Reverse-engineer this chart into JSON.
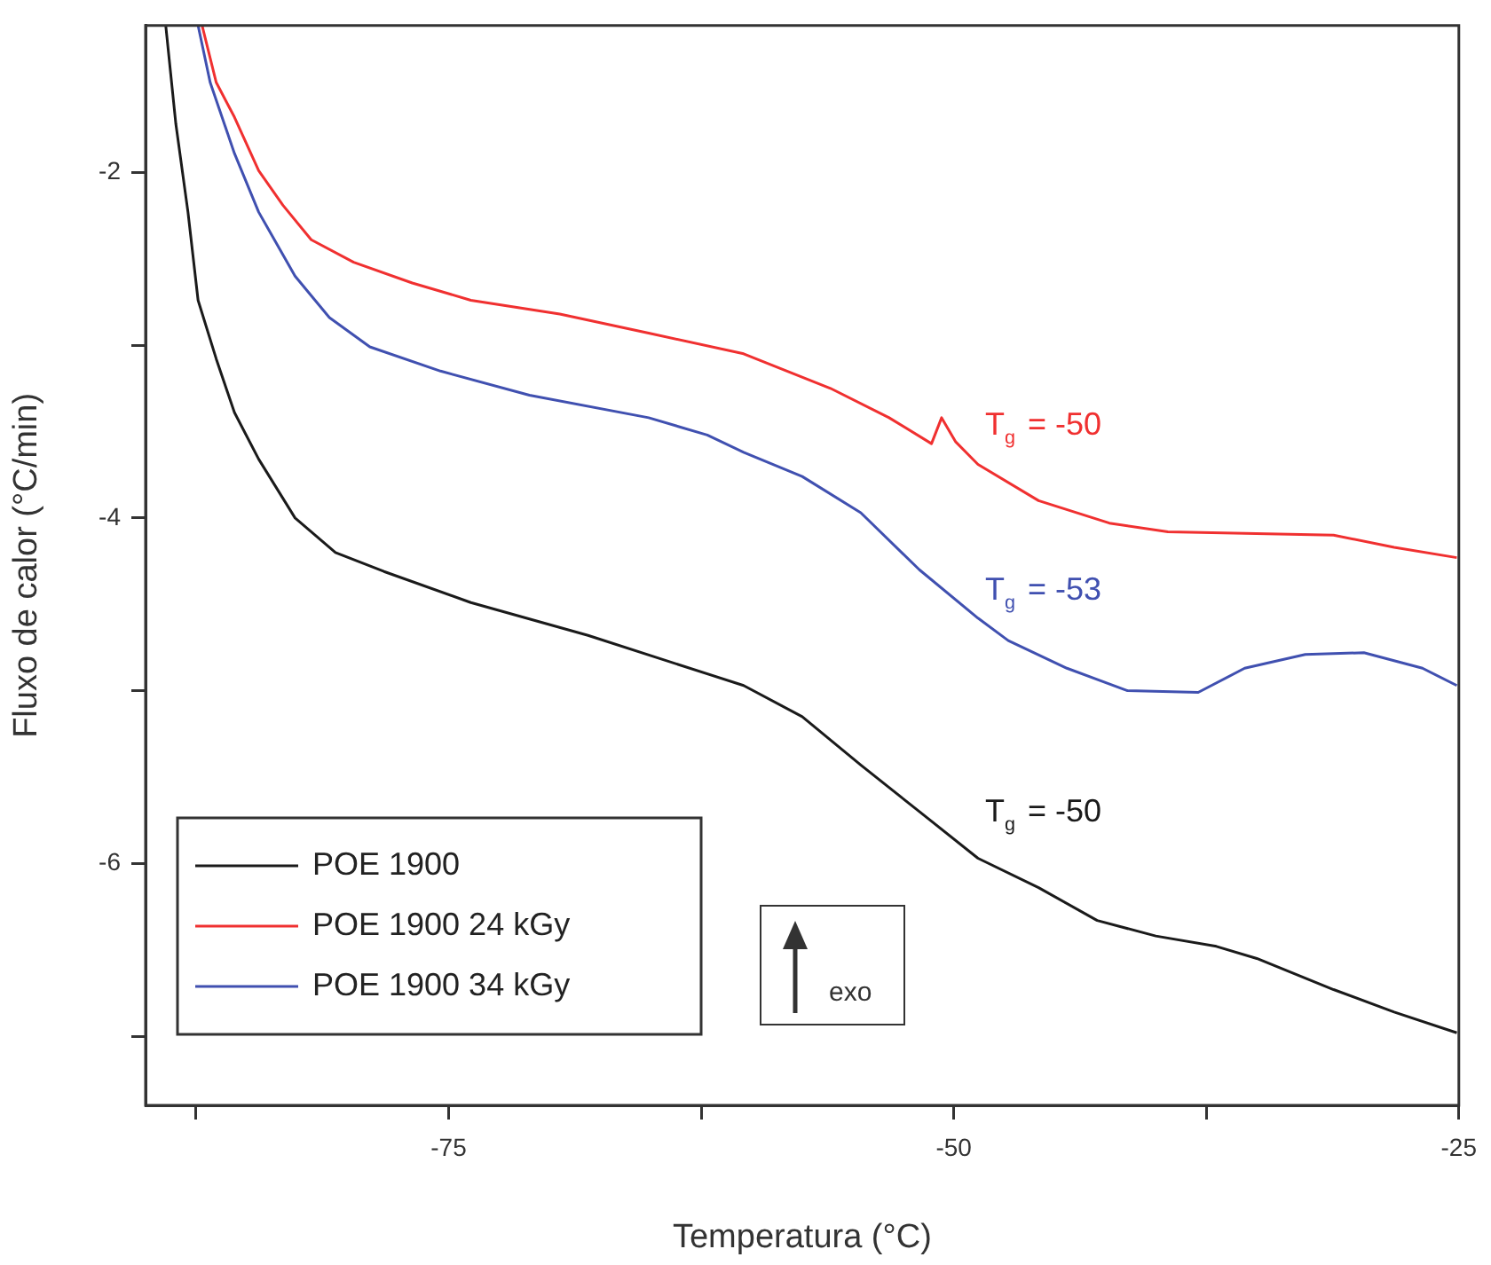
{
  "chart_data": {
    "type": "line",
    "xlabel": "Temperatura (°C)",
    "ylabel": "Fluxo de calor (°C/min)",
    "xlim": [
      -90,
      -25
    ],
    "xticks": [
      {
        "value": -87.5,
        "label": null
      },
      -75,
      {
        "value": -62.5,
        "label": null
      },
      -50,
      {
        "value": -37.5,
        "label": null
      },
      -25
    ],
    "ylim": [
      -7.4,
      -1.15
    ],
    "yticks": [
      {
        "value": -7,
        "label": null
      },
      -6,
      {
        "value": -5,
        "label": null
      },
      -4,
      {
        "value": -3,
        "label": null
      },
      -2
    ],
    "legend": "bottom left",
    "marker": "none",
    "line_style": "solid",
    "grid": false,
    "series": [
      {
        "name": "POE 1900",
        "color": "#1a1a1a",
        "x": [
          -89.0,
          -88.5,
          -87.9,
          -87.4,
          -86.5,
          -85.6,
          -84.4,
          -82.6,
          -80.6,
          -78.2,
          -73.9,
          -68.1,
          -60.4,
          -57.5,
          -54.6,
          -51.7,
          -48.8,
          -45.8,
          -42.9,
          -40.0,
          -37.0,
          -35.0,
          -31.2,
          -28.2,
          -25.1
        ],
        "values": [
          -1.15,
          -1.72,
          -2.23,
          -2.74,
          -3.08,
          -3.39,
          -3.66,
          -4.0,
          -4.2,
          -4.31,
          -4.49,
          -4.68,
          -4.97,
          -5.15,
          -5.43,
          -5.7,
          -5.97,
          -6.14,
          -6.33,
          -6.42,
          -6.48,
          -6.55,
          -6.73,
          -6.86,
          -6.98
        ]
      },
      {
        "name": "POE 1900 24 kGy",
        "color": "#f03030",
        "x": [
          -87.2,
          -86.5,
          -85.6,
          -84.4,
          -83.2,
          -81.8,
          -79.7,
          -76.8,
          -73.9,
          -69.5,
          -65.1,
          -60.4,
          -56.1,
          -53.2,
          -51.1,
          -50.6,
          -49.9,
          -48.8,
          -45.8,
          -42.3,
          -39.4,
          -31.2,
          -28.2,
          -25.1
        ],
        "values": [
          -1.15,
          -1.48,
          -1.68,
          -1.99,
          -2.19,
          -2.39,
          -2.52,
          -2.64,
          -2.74,
          -2.82,
          -2.93,
          -3.05,
          -3.25,
          -3.42,
          -3.57,
          -3.42,
          -3.56,
          -3.69,
          -3.9,
          -4.03,
          -4.08,
          -4.1,
          -4.17,
          -4.23
        ]
      },
      {
        "name": "POE 1900 34 kGy",
        "color": "#4050b0",
        "x": [
          -87.4,
          -86.8,
          -85.6,
          -84.4,
          -82.6,
          -80.9,
          -78.9,
          -75.4,
          -71.0,
          -65.1,
          -62.2,
          -60.4,
          -57.5,
          -54.6,
          -51.7,
          -48.8,
          -47.3,
          -44.4,
          -41.4,
          -37.9,
          -35.6,
          -32.6,
          -29.7,
          -26.8,
          -25.1
        ],
        "values": [
          -1.15,
          -1.48,
          -1.89,
          -2.23,
          -2.6,
          -2.84,
          -3.01,
          -3.15,
          -3.29,
          -3.42,
          -3.52,
          -3.62,
          -3.76,
          -3.97,
          -4.3,
          -4.58,
          -4.71,
          -4.87,
          -5.0,
          -5.01,
          -4.87,
          -4.79,
          -4.78,
          -4.87,
          -4.97
        ]
      }
    ],
    "annotations": [
      "T$_{g}$ = -50",
      "T$_{g}$ = -53",
      "T$_{g}$ = -50",
      "exo"
    ]
  }
}
